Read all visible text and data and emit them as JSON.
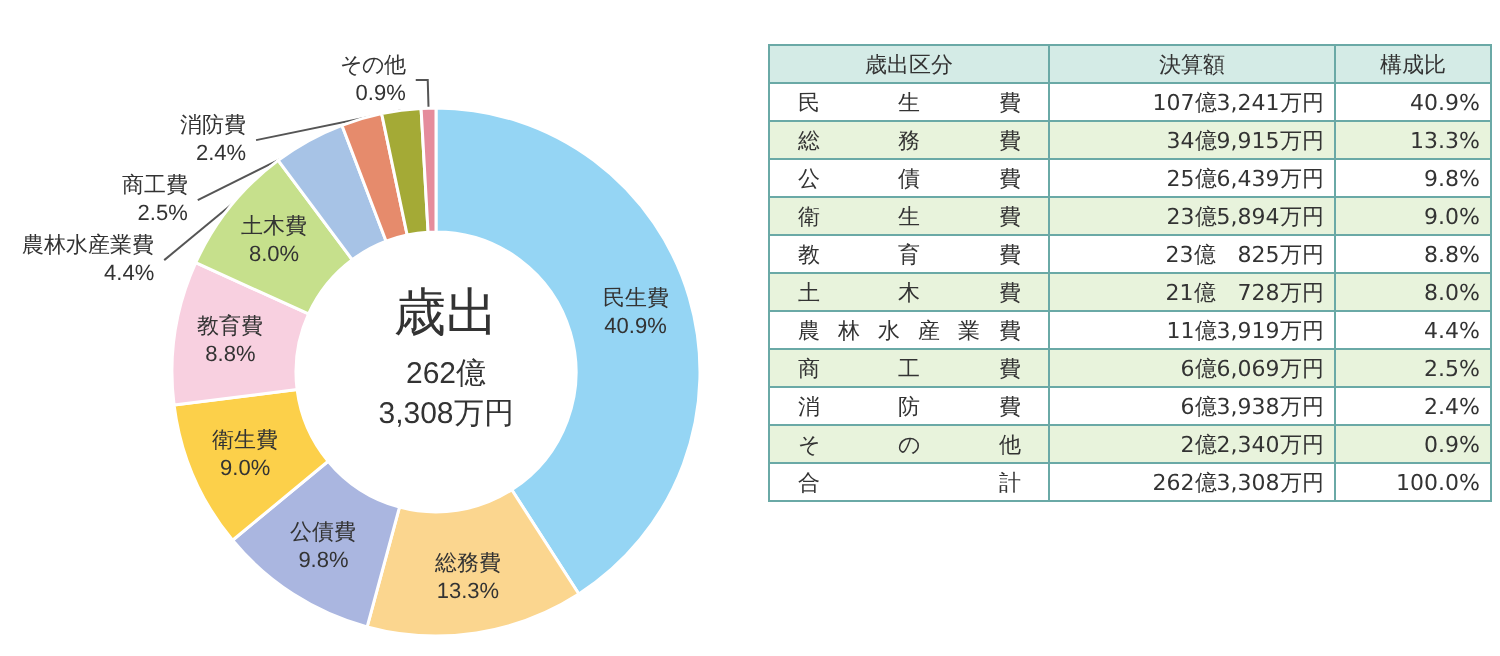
{
  "chart_data": [
    {
      "type": "donut",
      "title": "歳出",
      "subtitle": "262億\n3,308万円",
      "categories": [
        "民生費",
        "総務費",
        "公債費",
        "衛生費",
        "教育費",
        "土木費",
        "農林水産業費",
        "商工費",
        "消防費",
        "その他"
      ],
      "values": [
        40.9,
        13.3,
        9.8,
        9.0,
        8.8,
        8.0,
        4.4,
        2.5,
        2.4,
        0.9
      ],
      "value_labels": [
        "40.9%",
        "13.3%",
        "9.8%",
        "9.0%",
        "8.8%",
        "8.0%",
        "4.4%",
        "2.5%",
        "2.4%",
        "0.9%"
      ],
      "colors": [
        "#95d5f4",
        "#fbd68f",
        "#aab6e0",
        "#fcd04a",
        "#f8d0e0",
        "#c6e08c",
        "#a7c3e6",
        "#e68b6c",
        "#a4aa36",
        "#e58c9c"
      ],
      "legend": false
    },
    {
      "type": "other",
      "categories": [
        "歳出区分",
        "決算額",
        "構成比"
      ],
      "annotations": [
        "民生費",
        "107億3,241万円",
        "40.9%",
        "総務費",
        "34億9,915万円",
        "13.3%",
        "公債費",
        "25億6,439万円",
        "9.8%",
        "衛生費",
        "23億5,894万円",
        "9.0%",
        "教育費",
        "23億　825万円",
        "8.8%",
        "土木費",
        "21億　728万円",
        "8.0%",
        "農林水産業費",
        "11億3,919万円",
        "4.4%",
        "商工費",
        "6億6,069万円",
        "2.5%",
        "消防費",
        "6億3,938万円",
        "2.4%",
        "その他",
        "2億2,340万円",
        "0.9%",
        "合計",
        "262億3,308万円",
        "100.0%"
      ]
    }
  ]
}
